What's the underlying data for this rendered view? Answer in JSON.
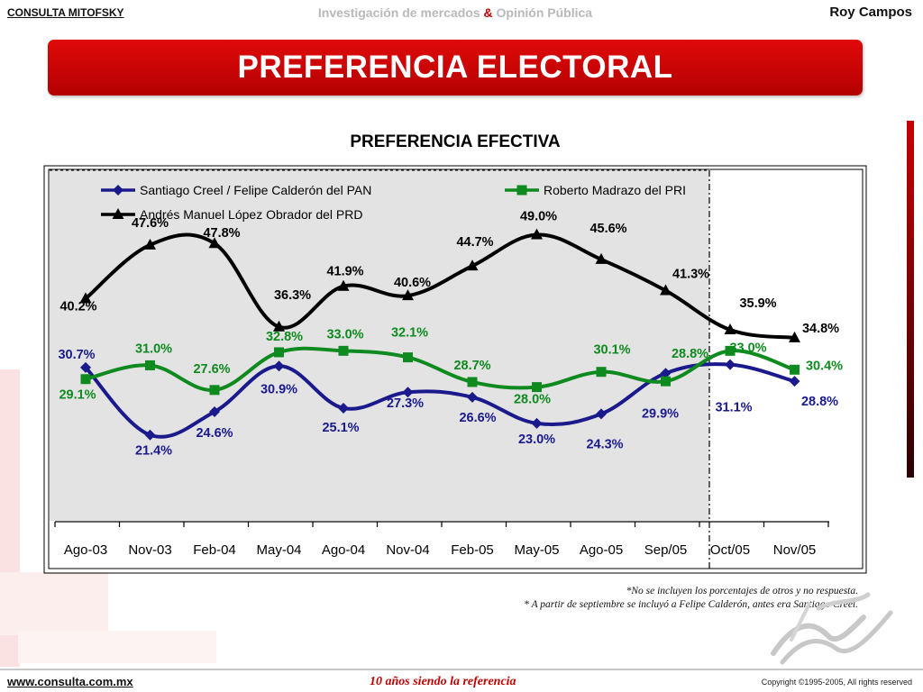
{
  "header": {
    "left": "CONSULTA MITOFSKY",
    "center_part1": "Investigación de mercados",
    "center_amp": "&",
    "center_part2": "Opinión Pública",
    "right": "Roy Campos"
  },
  "banner_title": "PREFERENCIA ELECTORAL",
  "notes": [
    "*No se incluyen los porcentajes de otros y no respuesta.",
    "* A partir de septiembre se incluyó a Felipe Calderón, antes era Santiago Creel."
  ],
  "footer": {
    "left": "www.consulta.com.mx",
    "center": "10 años siendo la referencia",
    "right": "Copyright ©1995-2005, All rights reserved"
  },
  "chart_data": {
    "type": "line",
    "title": "PREFERENCIA EFECTIVA",
    "categories": [
      "Ago-03",
      "Nov-03",
      "Feb-04",
      "May-04",
      "Ago-04",
      "Nov-04",
      "Feb-05",
      "May-05",
      "Ago-05",
      "Sep/05",
      "Oct/05",
      "Nov/05"
    ],
    "series": [
      {
        "name": "Santiago Creel / Felipe Calderón del PAN",
        "color": "#1a1a8c",
        "marker": "diamond",
        "values": [
          30.7,
          21.4,
          24.6,
          30.9,
          25.1,
          27.3,
          26.6,
          23.0,
          24.3,
          29.9,
          31.1,
          28.8
        ],
        "labels": [
          "30.7%",
          "21.4%",
          "24.6%",
          "30.9%",
          "25.1%",
          "27.3%",
          "26.6%",
          "23.0%",
          "24.3%",
          "29.9%",
          "31.1%",
          "28.8%"
        ]
      },
      {
        "name": "Roberto Madrazo del PRI",
        "color": "#0e8a1e",
        "marker": "square",
        "values": [
          29.1,
          31.0,
          27.6,
          32.8,
          33.0,
          32.1,
          28.7,
          28.0,
          30.1,
          28.8,
          33.0,
          30.4
        ],
        "labels": [
          "29.1%",
          "31.0%",
          "27.6%",
          "32.8%",
          "33.0%",
          "32.1%",
          "28.7%",
          "28.0%",
          "30.1%",
          "28.8%",
          "33.0%",
          "30.4%"
        ]
      },
      {
        "name": "Andrés Manuel López Obrador del PRD",
        "color": "#000000",
        "marker": "triangle",
        "values": [
          40.2,
          47.6,
          47.8,
          36.3,
          41.9,
          40.6,
          44.7,
          49.0,
          45.6,
          41.3,
          35.9,
          34.8
        ],
        "labels": [
          "40.2%",
          "47.6%",
          "47.8%",
          "36.3%",
          "41.9%",
          "40.6%",
          "44.7%",
          "49.0%",
          "45.6%",
          "41.3%",
          "35.9%",
          "34.8%"
        ]
      }
    ],
    "legend_placement": "top",
    "grid": false
  }
}
